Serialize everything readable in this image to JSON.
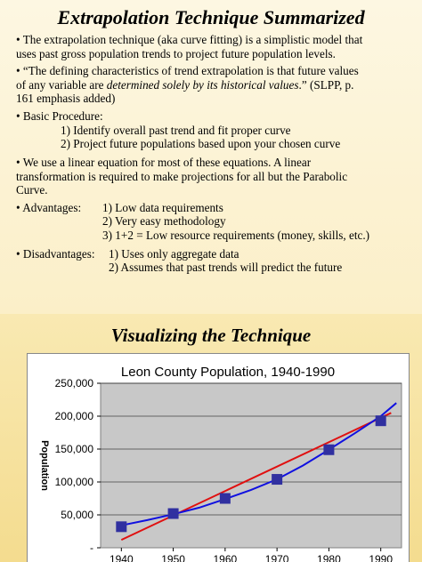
{
  "slide1": {
    "title": "Extrapolation Technique Summarized",
    "bullet_char": "•",
    "b1": [
      "The extrapolation technique (aka curve fitting) is a simplistic model that",
      "uses past gross population trends to project future population levels."
    ],
    "b2_l1": "“The defining characteristics of trend extrapolation is that future values",
    "b2_l2_a": "of any variable are ",
    "b2_l2_em": "determined solely by its historical values",
    "b2_l2_b": ".” (SLPP, p.",
    "b2_l3": "161 emphasis added)",
    "b3_head": "Basic Procedure:",
    "b3_items": [
      "1) Identify overall past trend and fit proper curve",
      "2) Project future populations based upon your chosen curve"
    ],
    "b4": [
      "We use a linear equation for most of these equations. A linear",
      "transformation is required to make projections for all but the Parabolic",
      "Curve."
    ],
    "adv_head": "Advantages:",
    "adv_items": [
      "1) Low data requirements",
      "2) Very easy methodology",
      "3) 1+2 = Low resource requirements (money, skills, etc.)"
    ],
    "dis_head": "Disadvantages:",
    "dis_items": [
      "1) Uses only aggregate data",
      "2) Assumes that past trends will predict the future"
    ]
  },
  "slide2": {
    "title": "Visualizing the Technique"
  },
  "chart_data": {
    "type": "line",
    "title": "Leon County Population, 1940-1990",
    "ylabel": "Population",
    "xlabel": "",
    "x": [
      1940,
      1950,
      1960,
      1970,
      1980,
      1990
    ],
    "ylim": [
      0,
      250000
    ],
    "yticks": [
      0,
      50000,
      100000,
      150000,
      200000,
      250000
    ],
    "ytick_labels": [
      "-",
      "50,000",
      "100,000",
      "150,000",
      "200,000",
      "250,000"
    ],
    "series": [
      {
        "name": "",
        "kind": "points",
        "color": "#3030a0",
        "values": [
          32000,
          52000,
          75000,
          104000,
          149000,
          193000
        ]
      },
      {
        "name": "",
        "kind": "linear-fit",
        "color": "#e01010",
        "x": [
          1940,
          1992
        ],
        "values": [
          12000,
          205000
        ]
      },
      {
        "name": "",
        "kind": "curve-fit",
        "color": "#1010e0",
        "x": [
          1940,
          1945,
          1950,
          1955,
          1960,
          1965,
          1970,
          1975,
          1980,
          1985,
          1990,
          1993
        ],
        "values": [
          34000,
          42000,
          51000,
          61000,
          74000,
          88000,
          104000,
          125000,
          149000,
          174000,
          200000,
          220000
        ]
      }
    ],
    "grid": true,
    "legend": "none",
    "plot_background": "#c8c8c8"
  }
}
